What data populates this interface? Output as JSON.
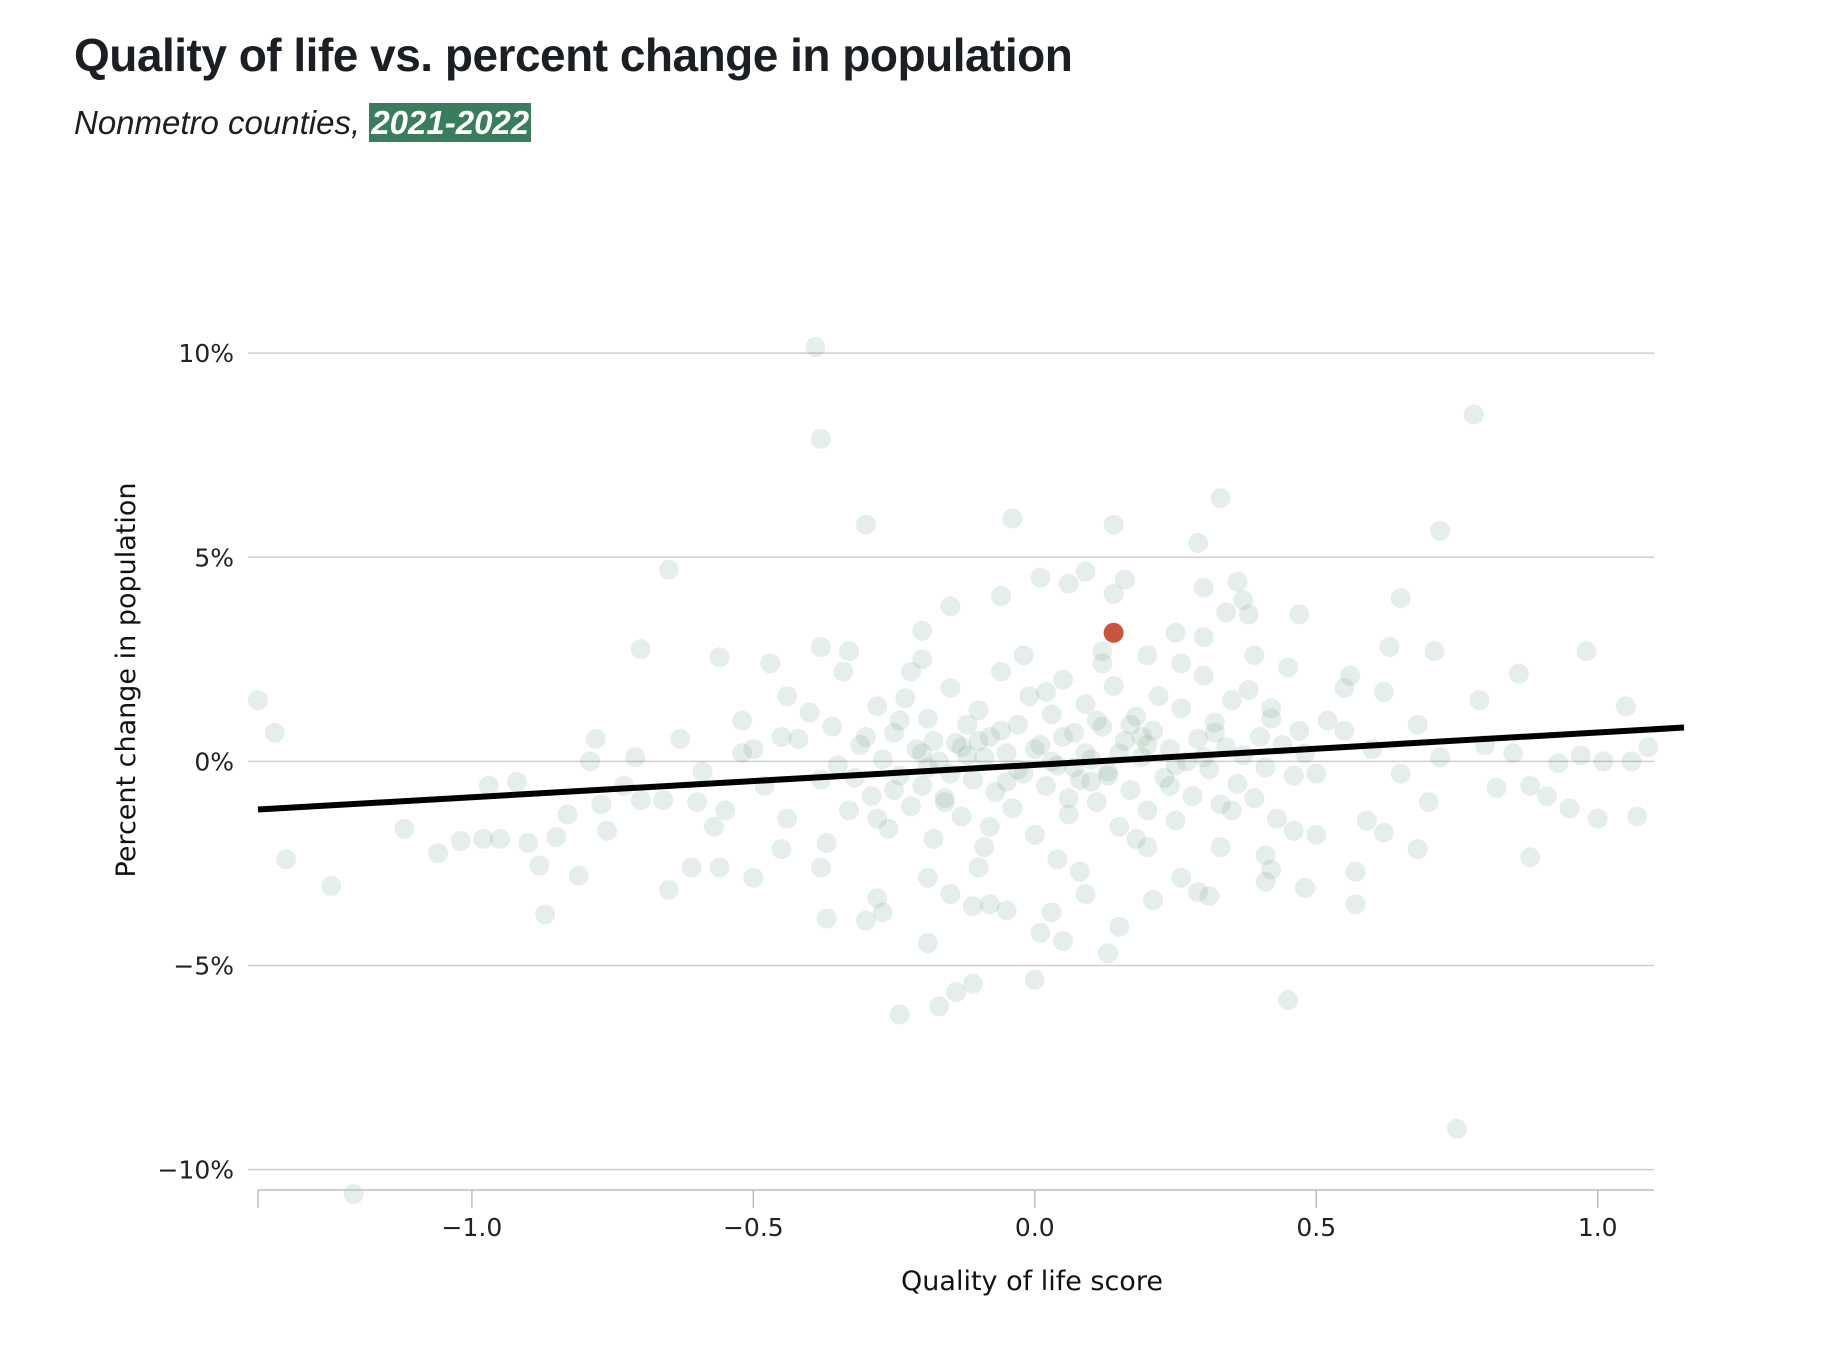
{
  "chart_data": {
    "type": "scatter",
    "title": "Quality of life vs. percent change in population",
    "subtitle_prefix": "Nonmetro counties, ",
    "subtitle_highlight": "2021-2022",
    "xlabel": "Quality of life score",
    "ylabel": "Percent change in population",
    "xlim": [
      -1.38,
      1.1
    ],
    "ylim": [
      -10.5,
      10.2
    ],
    "x_ticks": [
      -1.0,
      -0.5,
      0.0,
      0.5,
      1.0
    ],
    "x_tick_labels": [
      "−1.0",
      "−0.5",
      "0.0",
      "0.5",
      "1.0"
    ],
    "y_ticks": [
      10,
      5,
      0,
      -5,
      -10
    ],
    "y_tick_labels": [
      "10%",
      "5%",
      "0%",
      "−5%",
      "−10%"
    ],
    "grid": "horizontal",
    "trend_line": {
      "x": [
        -1.38,
        1.1
      ],
      "y": [
        -1.18,
        0.78
      ]
    },
    "highlight_point": {
      "x": 0.14,
      "y": 3.15
    },
    "points": [
      [
        -0.39,
        10.15
      ],
      [
        -0.38,
        7.9
      ],
      [
        0.78,
        8.5
      ],
      [
        0.33,
        6.45
      ],
      [
        -0.04,
        5.95
      ],
      [
        0.14,
        5.8
      ],
      [
        -0.3,
        5.8
      ],
      [
        0.72,
        5.65
      ],
      [
        0.29,
        5.35
      ],
      [
        -0.65,
        4.7
      ],
      [
        0.09,
        4.65
      ],
      [
        0.01,
        4.5
      ],
      [
        0.16,
        4.45
      ],
      [
        0.06,
        4.35
      ],
      [
        0.36,
        4.4
      ],
      [
        0.3,
        4.25
      ],
      [
        -0.06,
        4.05
      ],
      [
        0.14,
        4.1
      ],
      [
        0.37,
        3.95
      ],
      [
        0.65,
        4.0
      ],
      [
        -0.15,
        3.8
      ],
      [
        0.34,
        3.65
      ],
      [
        0.47,
        3.6
      ],
      [
        0.38,
        3.6
      ],
      [
        -0.2,
        3.2
      ],
      [
        0.25,
        3.15
      ],
      [
        0.3,
        3.05
      ],
      [
        -0.7,
        2.75
      ],
      [
        -0.38,
        2.8
      ],
      [
        0.71,
        2.7
      ],
      [
        0.98,
        2.7
      ],
      [
        -0.56,
        2.55
      ],
      [
        -0.47,
        2.4
      ],
      [
        0.63,
        2.8
      ],
      [
        0.86,
        2.15
      ],
      [
        0.56,
        2.1
      ],
      [
        -1.38,
        1.5
      ],
      [
        -1.35,
        0.7
      ],
      [
        0.79,
        1.5
      ],
      [
        1.05,
        1.35
      ],
      [
        0.62,
        1.7
      ],
      [
        -0.2,
        2.5
      ],
      [
        0.12,
        2.4
      ],
      [
        -0.33,
        2.7
      ],
      [
        0.2,
        2.6
      ],
      [
        -1.33,
        -2.4
      ],
      [
        -1.25,
        -3.05
      ],
      [
        -1.21,
        -10.6
      ],
      [
        -1.12,
        -1.65
      ],
      [
        -1.06,
        -2.25
      ],
      [
        -1.02,
        -1.95
      ],
      [
        -0.98,
        -1.9
      ],
      [
        -0.95,
        -1.9
      ],
      [
        -0.9,
        -2.0
      ],
      [
        -0.88,
        -2.55
      ],
      [
        -0.87,
        -3.75
      ],
      [
        -0.85,
        -1.85
      ],
      [
        -0.83,
        -1.3
      ],
      [
        -0.81,
        -2.8
      ],
      [
        -0.79,
        0.0
      ],
      [
        -0.78,
        0.55
      ],
      [
        -0.77,
        -1.05
      ],
      [
        -0.76,
        -1.7
      ],
      [
        -0.73,
        -0.6
      ],
      [
        -0.7,
        -0.95
      ],
      [
        -0.65,
        -3.15
      ],
      [
        -0.63,
        0.55
      ],
      [
        -0.61,
        -2.6
      ],
      [
        -0.56,
        -2.6
      ],
      [
        -0.5,
        -2.85
      ],
      [
        -0.44,
        -1.4
      ],
      [
        -0.38,
        -2.6
      ],
      [
        -0.37,
        -3.85
      ],
      [
        -0.3,
        -3.9
      ],
      [
        -0.28,
        -3.35
      ],
      [
        -0.27,
        -3.7
      ],
      [
        -0.24,
        -6.2
      ],
      [
        -0.19,
        -4.45
      ],
      [
        -0.19,
        -2.85
      ],
      [
        -0.17,
        -6.0
      ],
      [
        -0.15,
        -3.25
      ],
      [
        -0.14,
        -5.65
      ],
      [
        -0.11,
        -5.45
      ],
      [
        -0.11,
        -3.55
      ],
      [
        -0.08,
        -3.5
      ],
      [
        -0.05,
        -3.65
      ],
      [
        0.0,
        -5.35
      ],
      [
        0.01,
        -4.2
      ],
      [
        0.03,
        -3.7
      ],
      [
        0.05,
        -4.4
      ],
      [
        0.09,
        -3.25
      ],
      [
        0.13,
        -4.7
      ],
      [
        0.15,
        -4.05
      ],
      [
        0.2,
        -2.1
      ],
      [
        0.21,
        -3.4
      ],
      [
        0.26,
        -2.85
      ],
      [
        0.29,
        -3.2
      ],
      [
        0.31,
        -3.3
      ],
      [
        0.33,
        -2.1
      ],
      [
        0.41,
        -2.95
      ],
      [
        0.42,
        -2.65
      ],
      [
        0.45,
        -5.85
      ],
      [
        0.48,
        -3.1
      ],
      [
        0.5,
        -1.8
      ],
      [
        0.57,
        -2.7
      ],
      [
        0.57,
        -3.5
      ],
      [
        0.59,
        -1.45
      ],
      [
        0.62,
        -1.75
      ],
      [
        0.68,
        -2.15
      ],
      [
        0.75,
        -9.0
      ],
      [
        0.82,
        -0.65
      ],
      [
        0.85,
        0.2
      ],
      [
        0.88,
        -2.35
      ],
      [
        0.88,
        -0.6
      ],
      [
        0.91,
        -0.85
      ],
      [
        0.93,
        -0.05
      ],
      [
        0.95,
        -1.15
      ],
      [
        0.97,
        0.15
      ],
      [
        1.0,
        -1.4
      ],
      [
        1.01,
        0.0
      ],
      [
        1.06,
        0.0
      ],
      [
        1.07,
        -1.35
      ],
      [
        1.09,
        0.35
      ],
      [
        -0.59,
        -0.25
      ],
      [
        -0.52,
        0.2
      ],
      [
        -0.71,
        0.1
      ],
      [
        -0.92,
        -0.5
      ],
      [
        -0.97,
        -0.6
      ],
      [
        -0.66,
        -0.95
      ],
      [
        -0.42,
        0.55
      ],
      [
        -0.45,
        -2.15
      ],
      [
        -0.57,
        -1.6
      ],
      [
        -0.6,
        -1.0
      ],
      [
        0.55,
        0.75
      ],
      [
        0.65,
        -0.3
      ],
      [
        0.72,
        0.1
      ],
      [
        0.7,
        -1.0
      ],
      [
        0.8,
        0.4
      ],
      [
        0.6,
        0.3
      ],
      [
        0.68,
        0.9
      ],
      [
        -0.45,
        0.6
      ],
      [
        -0.38,
        -0.45
      ],
      [
        -0.36,
        0.85
      ],
      [
        -0.33,
        -1.2
      ],
      [
        -0.31,
        0.4
      ],
      [
        -0.29,
        -0.85
      ],
      [
        -0.28,
        1.35
      ],
      [
        -0.27,
        0.05
      ],
      [
        -0.26,
        -1.65
      ],
      [
        -0.25,
        0.7
      ],
      [
        -0.24,
        -0.35
      ],
      [
        -0.23,
        1.55
      ],
      [
        -0.22,
        -1.1
      ],
      [
        -0.21,
        0.3
      ],
      [
        -0.2,
        -0.6
      ],
      [
        -0.19,
        1.05
      ],
      [
        -0.18,
        -1.9
      ],
      [
        -0.17,
        0.0
      ],
      [
        -0.16,
        -0.9
      ],
      [
        -0.15,
        1.8
      ],
      [
        -0.14,
        0.45
      ],
      [
        -0.13,
        -1.35
      ],
      [
        -0.12,
        0.15
      ],
      [
        -0.11,
        -0.45
      ],
      [
        -0.1,
        1.25
      ],
      [
        -0.09,
        -2.1
      ],
      [
        -0.08,
        0.6
      ],
      [
        -0.07,
        -0.75
      ],
      [
        -0.06,
        2.2
      ],
      [
        -0.05,
        0.2
      ],
      [
        -0.04,
        -1.15
      ],
      [
        -0.03,
        0.9
      ],
      [
        -0.02,
        -0.3
      ],
      [
        -0.01,
        1.6
      ],
      [
        0.0,
        -1.8
      ],
      [
        0.01,
        0.4
      ],
      [
        0.02,
        -0.6
      ],
      [
        0.03,
        1.15
      ],
      [
        0.04,
        -0.1
      ],
      [
        0.05,
        2.0
      ],
      [
        0.06,
        -1.3
      ],
      [
        0.07,
        0.7
      ],
      [
        0.08,
        -0.45
      ],
      [
        0.09,
        1.4
      ],
      [
        0.1,
        0.05
      ],
      [
        0.11,
        -1.0
      ],
      [
        0.12,
        0.85
      ],
      [
        0.13,
        -0.25
      ],
      [
        0.14,
        1.85
      ],
      [
        0.15,
        -1.6
      ],
      [
        0.16,
        0.5
      ],
      [
        0.17,
        -0.7
      ],
      [
        0.18,
        1.1
      ],
      [
        0.19,
        0.1
      ],
      [
        0.2,
        -1.2
      ],
      [
        0.21,
        0.75
      ],
      [
        0.22,
        1.6
      ],
      [
        0.23,
        -0.4
      ],
      [
        0.24,
        0.3
      ],
      [
        0.25,
        -1.45
      ],
      [
        0.26,
        1.3
      ],
      [
        0.27,
        0.0
      ],
      [
        0.28,
        -0.85
      ],
      [
        0.29,
        0.55
      ],
      [
        0.3,
        2.1
      ],
      [
        0.31,
        -0.2
      ],
      [
        0.32,
        0.95
      ],
      [
        0.33,
        -1.05
      ],
      [
        0.34,
        0.35
      ],
      [
        0.35,
        1.5
      ],
      [
        0.36,
        -0.55
      ],
      [
        0.37,
        0.15
      ],
      [
        0.38,
        1.75
      ],
      [
        0.39,
        -0.9
      ],
      [
        0.4,
        0.6
      ],
      [
        0.41,
        -0.15
      ],
      [
        0.42,
        1.05
      ],
      [
        0.43,
        -1.4
      ],
      [
        0.44,
        0.4
      ],
      [
        0.45,
        2.3
      ],
      [
        0.46,
        -0.35
      ],
      [
        0.47,
        0.75
      ],
      [
        -0.35,
        -0.1
      ],
      [
        -0.3,
        0.6
      ],
      [
        -0.25,
        -0.7
      ],
      [
        -0.2,
        0.2
      ],
      [
        -0.15,
        -0.3
      ],
      [
        -0.1,
        0.5
      ],
      [
        -0.05,
        -0.5
      ],
      [
        0.0,
        0.3
      ],
      [
        0.05,
        0.6
      ],
      [
        0.1,
        -0.5
      ],
      [
        0.15,
        0.2
      ],
      [
        0.2,
        0.4
      ],
      [
        0.25,
        -0.1
      ],
      [
        0.3,
        0.1
      ],
      [
        -0.12,
        0.9
      ],
      [
        -0.08,
        -1.6
      ],
      [
        0.02,
        1.7
      ],
      [
        0.06,
        -0.9
      ],
      [
        0.11,
        1.0
      ],
      [
        -0.18,
        0.5
      ],
      [
        -0.22,
        2.2
      ],
      [
        0.18,
        -1.9
      ],
      [
        -0.02,
        2.6
      ],
      [
        0.04,
        -2.4
      ],
      [
        0.12,
        2.7
      ],
      [
        -0.1,
        -2.6
      ],
      [
        0.26,
        2.4
      ],
      [
        0.08,
        -2.7
      ],
      [
        -0.28,
        -1.4
      ],
      [
        0.35,
        -1.2
      ],
      [
        -0.4,
        1.2
      ],
      [
        0.42,
        1.3
      ],
      [
        -0.48,
        -0.6
      ],
      [
        0.5,
        -0.3
      ],
      [
        -0.52,
        1.0
      ],
      [
        0.52,
        1.0
      ],
      [
        -0.55,
        -1.2
      ],
      [
        0.55,
        1.8
      ],
      [
        -0.34,
        2.2
      ],
      [
        -0.37,
        -2.0
      ],
      [
        0.39,
        2.6
      ],
      [
        0.41,
        -2.3
      ],
      [
        -0.44,
        1.6
      ],
      [
        0.46,
        -1.7
      ],
      [
        -0.5,
        0.3
      ],
      [
        0.48,
        0.2
      ],
      [
        -0.16,
        -1.0
      ],
      [
        -0.06,
        0.75
      ],
      [
        0.07,
        -0.15
      ],
      [
        0.17,
        0.9
      ],
      [
        -0.24,
        1.0
      ],
      [
        0.24,
        -0.6
      ],
      [
        -0.32,
        -0.4
      ],
      [
        0.32,
        0.7
      ],
      [
        -0.09,
        0.1
      ],
      [
        0.09,
        0.2
      ],
      [
        -0.03,
        -0.2
      ],
      [
        0.03,
        0.0
      ],
      [
        -0.13,
        0.35
      ],
      [
        0.13,
        -0.35
      ],
      [
        -0.19,
        -0.15
      ],
      [
        0.19,
        0.6
      ]
    ]
  }
}
